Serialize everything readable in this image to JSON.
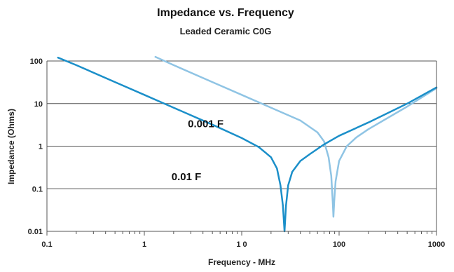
{
  "chart_data": {
    "type": "line",
    "title": "Impedance vs. Frequency",
    "subtitle": "Leaded Ceramic C0G",
    "xlabel": "Frequency - MHz",
    "ylabel": "Impedance (Ohms)",
    "x_scale": "log",
    "y_scale": "log",
    "xlim": [
      0.1,
      1000
    ],
    "ylim": [
      0.01,
      100
    ],
    "x_ticks": [
      {
        "value": 0.1,
        "label": "0.1"
      },
      {
        "value": 1,
        "label": "1"
      },
      {
        "value": 10,
        "label": "1 0"
      },
      {
        "value": 100,
        "label": "100"
      },
      {
        "value": 1000,
        "label": "1000"
      }
    ],
    "y_ticks": [
      {
        "value": 100,
        "label": "100"
      },
      {
        "value": 10,
        "label": "10"
      },
      {
        "value": 1,
        "label": "1"
      },
      {
        "value": 0.1,
        "label": "0.1"
      },
      {
        "value": 0.01,
        "label": "0.01"
      }
    ],
    "grid": "horizontal",
    "series": [
      {
        "name": "0.01  F",
        "color": "#1b8fc9",
        "points": [
          [
            0.13,
            120
          ],
          [
            0.2,
            80
          ],
          [
            0.5,
            32
          ],
          [
            1,
            16
          ],
          [
            2,
            8
          ],
          [
            5,
            3.2
          ],
          [
            10,
            1.55
          ],
          [
            15,
            0.95
          ],
          [
            20,
            0.55
          ],
          [
            23,
            0.3
          ],
          [
            25,
            0.12
          ],
          [
            26.5,
            0.04
          ],
          [
            27.5,
            0.01
          ],
          [
            28.5,
            0.04
          ],
          [
            30,
            0.12
          ],
          [
            33,
            0.25
          ],
          [
            40,
            0.45
          ],
          [
            50,
            0.65
          ],
          [
            70,
            1.1
          ],
          [
            100,
            1.75
          ],
          [
            200,
            3.6
          ],
          [
            500,
            10
          ],
          [
            1000,
            24
          ]
        ]
      },
      {
        "name": "0.001  F",
        "color": "#8fc4e4",
        "points": [
          [
            1.3,
            125
          ],
          [
            2,
            80
          ],
          [
            5,
            32
          ],
          [
            10,
            16
          ],
          [
            20,
            8
          ],
          [
            40,
            4
          ],
          [
            60,
            2.1
          ],
          [
            70,
            1.3
          ],
          [
            78,
            0.55
          ],
          [
            83,
            0.2
          ],
          [
            86,
            0.05
          ],
          [
            87.5,
            0.022
          ],
          [
            89,
            0.05
          ],
          [
            92,
            0.15
          ],
          [
            100,
            0.45
          ],
          [
            120,
            1
          ],
          [
            150,
            1.6
          ],
          [
            200,
            2.5
          ],
          [
            500,
            8.5
          ],
          [
            1000,
            23
          ]
        ]
      }
    ],
    "annotations": [
      {
        "text": "0.001  F",
        "x": 2.8,
        "y": 2.8
      },
      {
        "text": "0.01  F",
        "x": 1.9,
        "y": 0.16
      }
    ]
  }
}
